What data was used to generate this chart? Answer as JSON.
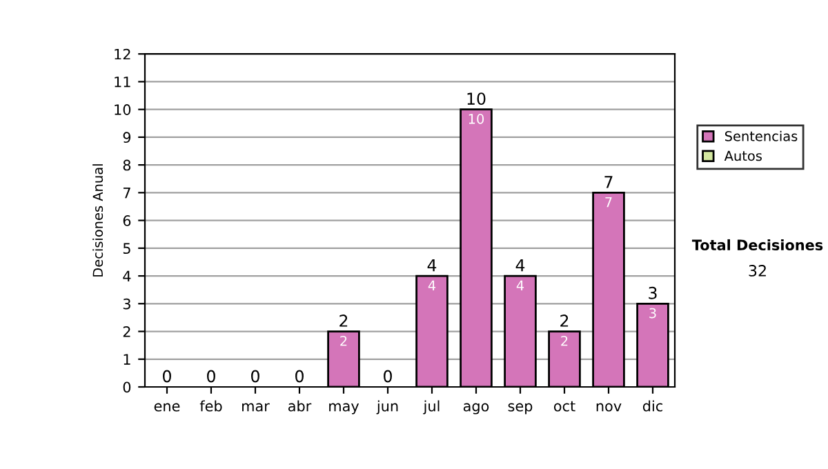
{
  "chart_data": {
    "type": "bar",
    "ylabel": "Decisiones Anual",
    "categories": [
      "ene",
      "feb",
      "mar",
      "abr",
      "may",
      "jun",
      "jul",
      "ago",
      "sep",
      "oct",
      "nov",
      "dic"
    ],
    "stacked": true,
    "series": [
      {
        "name": "Sentencias",
        "color": "#d475b9",
        "values": [
          0,
          0,
          0,
          0,
          2,
          0,
          4,
          10,
          4,
          2,
          7,
          3
        ],
        "value_labels": [
          null,
          null,
          null,
          null,
          "2",
          null,
          "4",
          "10",
          "4",
          "2",
          "7",
          "3"
        ]
      },
      {
        "name": "Autos",
        "color": "#d4e8a0",
        "values": [
          0,
          0,
          0,
          0,
          0,
          0,
          0,
          0,
          0,
          0,
          0,
          0
        ]
      }
    ],
    "totals": [
      "0",
      "0",
      "0",
      "0",
      "2",
      "0",
      "4",
      "10",
      "4",
      "2",
      "7",
      "3"
    ],
    "ylim": [
      0,
      12
    ],
    "yticks": [
      0,
      1,
      2,
      3,
      4,
      5,
      6,
      7,
      8,
      9,
      10,
      11,
      12
    ],
    "grid": "y",
    "legend": "right",
    "annotations": [
      "Total Decisiones",
      "32"
    ]
  }
}
